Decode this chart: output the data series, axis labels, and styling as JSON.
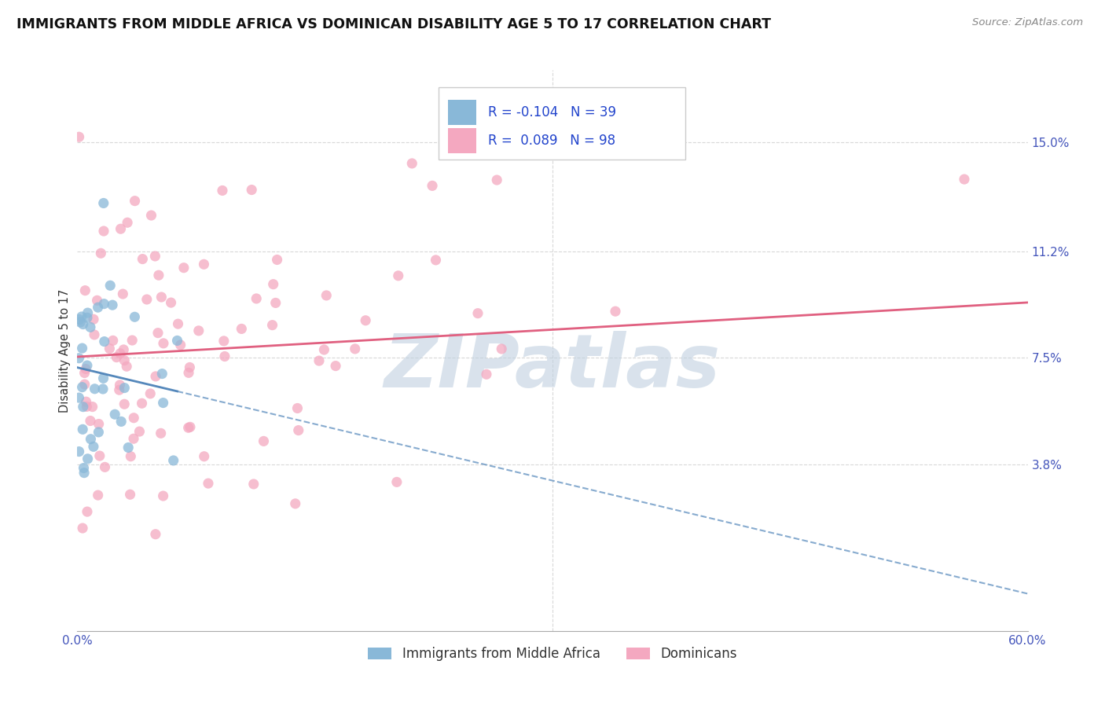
{
  "title": "IMMIGRANTS FROM MIDDLE AFRICA VS DOMINICAN DISABILITY AGE 5 TO 17 CORRELATION CHART",
  "source": "Source: ZipAtlas.com",
  "ylabel": "Disability Age 5 to 17",
  "xlim": [
    0.0,
    0.6
  ],
  "ylim": [
    -0.02,
    0.175
  ],
  "xticks": [
    0.0,
    0.6
  ],
  "xticklabels": [
    "0.0%",
    "60.0%"
  ],
  "yticks": [
    0.038,
    0.075,
    0.112,
    0.15
  ],
  "yticklabels": [
    "3.8%",
    "7.5%",
    "11.2%",
    "15.0%"
  ],
  "series1_label": "Immigrants from Middle Africa",
  "series2_label": "Dominicans",
  "series1_color": "#89b8d8",
  "series2_color": "#f4a8c0",
  "series1_line_color": "#5588bb",
  "series2_line_color": "#e06080",
  "series1_R": -0.104,
  "series1_N": 39,
  "series2_R": 0.089,
  "series2_N": 98,
  "background_color": "#ffffff",
  "grid_color": "#d8d8d8",
  "watermark": "ZIPatlas",
  "watermark_color": "#c0d0e0",
  "title_color": "#111111",
  "ylabel_color": "#333333",
  "tick_color": "#4455bb",
  "legend_r1": "R = -0.104",
  "legend_n1": "N = 39",
  "legend_r2": "R =  0.089",
  "legend_n2": "N = 98",
  "seed1": 42,
  "seed2": 77
}
